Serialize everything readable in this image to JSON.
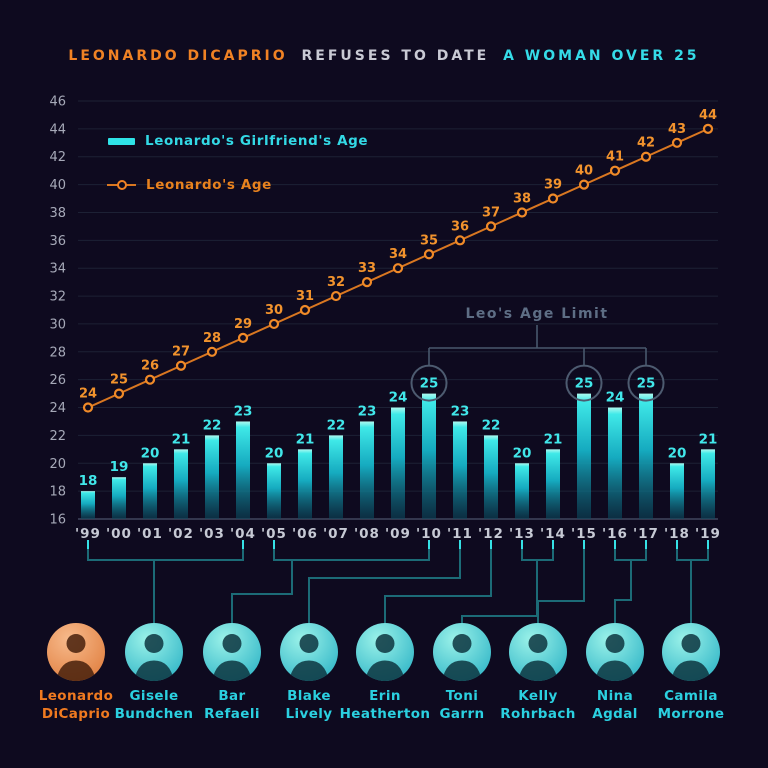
{
  "title": {
    "highlight_orange": "LEONARDO DICAPRIO",
    "middle": "REFUSES TO DATE",
    "highlight_cyan": "A WOMAN OVER 25"
  },
  "legend": {
    "bar_label": "Leonardo's Girlfriend's Age",
    "line_label": "Leonardo's Age"
  },
  "annotation": {
    "label": "Leo's Age Limit",
    "circled_value": 25,
    "circled_years": [
      "'10",
      "'15",
      "'17"
    ]
  },
  "chart_data": {
    "type": "bar+line",
    "categories": [
      "'99",
      "'00",
      "'01",
      "'02",
      "'03",
      "'04",
      "'05",
      "'06",
      "'07",
      "'08",
      "'09",
      "'10",
      "'11",
      "'12",
      "'13",
      "'14",
      "'15",
      "'16",
      "'17",
      "'18",
      "'19"
    ],
    "series": [
      {
        "name": "Leonardo's Girlfriend's Age",
        "type": "bar",
        "color": "#2FE3E8",
        "values": [
          18,
          19,
          20,
          21,
          22,
          23,
          20,
          21,
          22,
          23,
          24,
          25,
          23,
          22,
          20,
          21,
          25,
          24,
          25,
          20,
          21
        ]
      },
      {
        "name": "Leonardo's Age",
        "type": "line",
        "color": "#E8821E",
        "values": [
          24,
          25,
          26,
          27,
          28,
          29,
          30,
          31,
          32,
          33,
          34,
          35,
          36,
          37,
          38,
          39,
          40,
          41,
          42,
          43,
          44
        ]
      }
    ],
    "ylim": [
      16,
      46
    ],
    "yticks": [
      16,
      18,
      20,
      22,
      24,
      26,
      28,
      30,
      32,
      34,
      36,
      38,
      40,
      42,
      44,
      46
    ],
    "grid": true,
    "legend_position": "top-left",
    "value_labels": true
  },
  "people": [
    {
      "name_line1": "Leonardo",
      "name_line2": "DiCaprio",
      "accent": "orange",
      "years": []
    },
    {
      "name_line1": "Gisele",
      "name_line2": "Bundchen",
      "accent": "cyan",
      "years": [
        "'99",
        "'04"
      ]
    },
    {
      "name_line1": "Bar",
      "name_line2": "Refaeli",
      "accent": "cyan",
      "years": [
        "'05",
        "'10"
      ]
    },
    {
      "name_line1": "Blake",
      "name_line2": "Lively",
      "accent": "cyan",
      "years": [
        "'11"
      ]
    },
    {
      "name_line1": "Erin",
      "name_line2": "Heatherton",
      "accent": "cyan",
      "years": [
        "'12"
      ]
    },
    {
      "name_line1": "Toni",
      "name_line2": "Garrn",
      "accent": "cyan",
      "years": [
        "'13",
        "'14"
      ]
    },
    {
      "name_line1": "Kelly",
      "name_line2": "Rohrbach",
      "accent": "cyan",
      "years": [
        "'15"
      ]
    },
    {
      "name_line1": "Nina",
      "name_line2": "Agdal",
      "accent": "cyan",
      "years": [
        "'16",
        "'17"
      ]
    },
    {
      "name_line1": "Camila",
      "name_line2": "Morrone",
      "accent": "cyan",
      "years": [
        "'18",
        "'19"
      ]
    }
  ],
  "colors": {
    "background": "#0E0A1F",
    "orange": "#E8821E",
    "cyan": "#2FE3E8",
    "slate": "#55627A",
    "grid": "#1D2135",
    "axis_text": "#A6A9B8",
    "connector": "#1C6B77"
  }
}
